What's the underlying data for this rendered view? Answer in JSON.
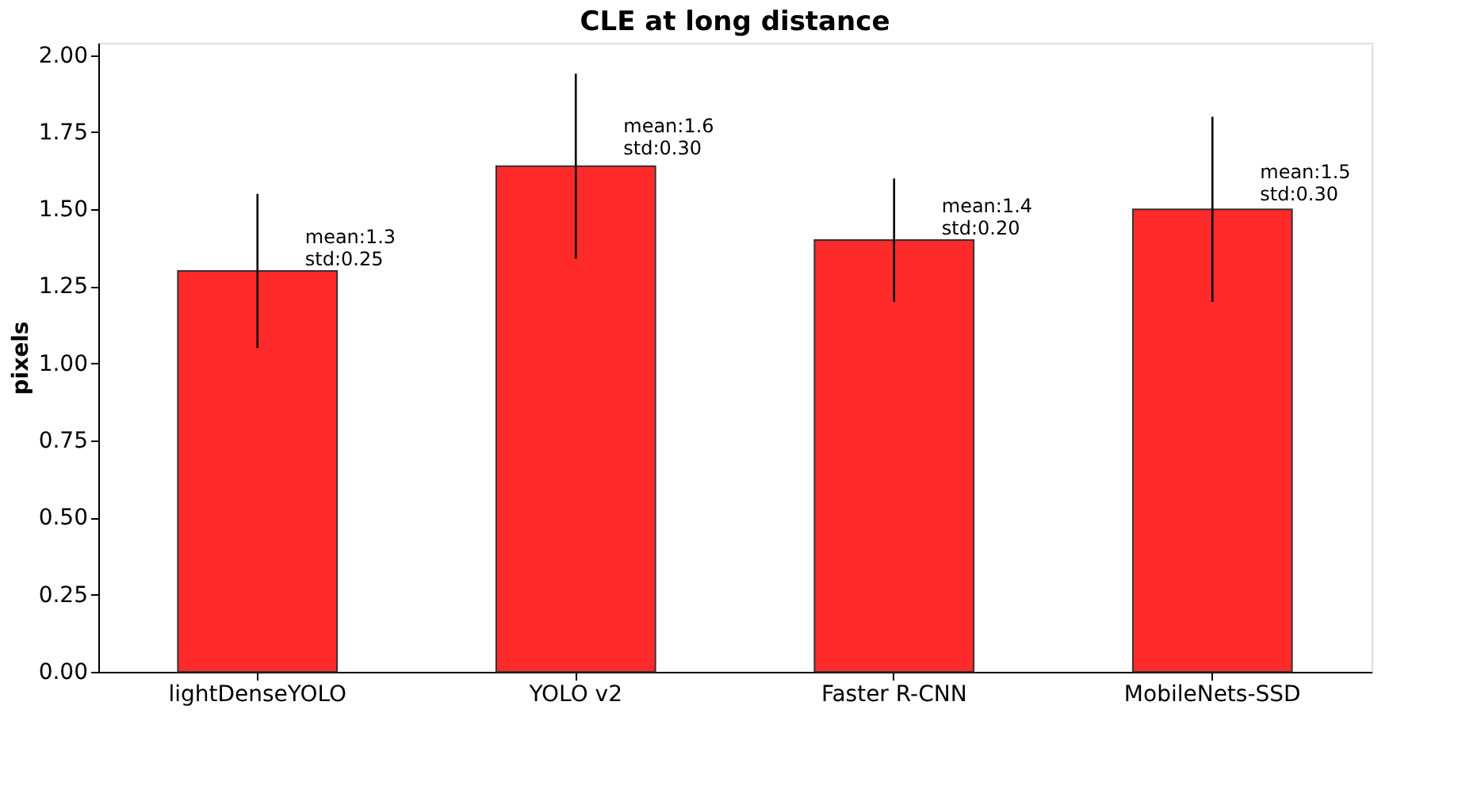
{
  "chart_data": {
    "type": "bar",
    "title": "CLE at long distance",
    "ylabel": "pixels",
    "categories": [
      "lightDenseYOLO",
      "YOLO v2",
      "Faster R-CNN",
      "MobileNets-SSD"
    ],
    "values": [
      1.3,
      1.64,
      1.4,
      1.5
    ],
    "errors": [
      0.25,
      0.3,
      0.2,
      0.3
    ],
    "color": "#ff2a2a",
    "ylim": [
      0,
      2.04
    ],
    "yticks": [
      {
        "value": 0,
        "label": "0.00"
      },
      {
        "value": 0.25,
        "label": "0.25"
      },
      {
        "value": 0.5,
        "label": "0.50"
      },
      {
        "value": 0.75,
        "label": "0.75"
      },
      {
        "value": 1,
        "label": "1.00"
      },
      {
        "value": 1.25,
        "label": "1.25"
      },
      {
        "value": 1.5,
        "label": "1.50"
      },
      {
        "value": 1.75,
        "label": "1.75"
      },
      {
        "value": 2,
        "label": "2.00"
      }
    ],
    "grid": false,
    "annotations": [
      {
        "text": "mean:1.3\nstd:0.25",
        "x": "lightDenseYOLO",
        "y": 1.41
      },
      {
        "text": "mean:1.6\nstd:0.30",
        "x": "YOLO v2",
        "y": 1.77
      },
      {
        "text": "mean:1.4\nstd:0.20",
        "x": "Faster R-CNN",
        "y": 1.51
      },
      {
        "text": "mean:1.5\nstd:0.30",
        "x": "MobileNets-SSD",
        "y": 1.62
      }
    ]
  }
}
